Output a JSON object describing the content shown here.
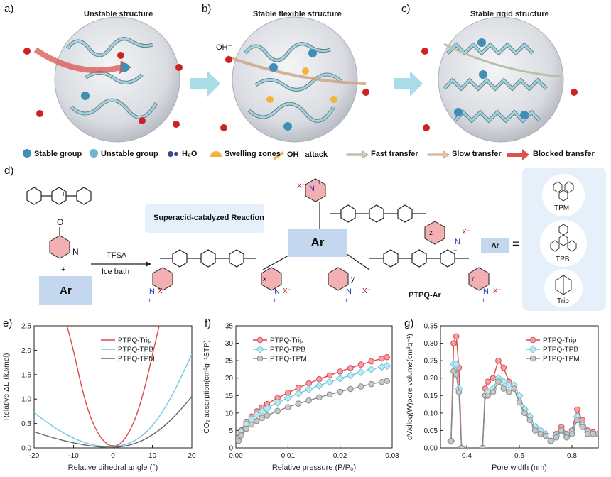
{
  "panels": {
    "a": {
      "label": "a)",
      "title": "Unstable structure"
    },
    "b": {
      "label": "b)",
      "title": "Stable flexible structure",
      "oh": "OH⁻"
    },
    "c": {
      "label": "c)",
      "title": "Stable rigid structure"
    },
    "d": {
      "label": "d)"
    },
    "e": {
      "label": "e)"
    },
    "f": {
      "label": "f)"
    },
    "g": {
      "label": "g)"
    }
  },
  "legend": {
    "stable": "Stable group",
    "unstable": "Unstable group",
    "h2o": "H₂O",
    "swelling": "Swelling zones",
    "oh_attack": "OH⁻ attack",
    "fast": "Fast transfer",
    "slow": "Slow transfer",
    "blocked": "Blocked transfer"
  },
  "scheme": {
    "reaction": "Superacid-catalyzed Reaction",
    "reagent": "TFSA",
    "condition": "Ice bath",
    "ar": "Ar",
    "ar_small": "Ar",
    "equals": "=",
    "plus1": "+",
    "plus2": "+",
    "o": "O",
    "n": "N",
    "polymer": "PTPQ-Ar",
    "sub_x": "x",
    "sub_y": "y",
    "sub_z": "z",
    "sub_n": "n",
    "options": [
      "TPM",
      "TPB",
      "Trip"
    ],
    "xminus": "X⁻",
    "nplus": "N",
    "plus": "+"
  },
  "colors": {
    "trip": "#e0474c",
    "tpb": "#6fc8dc",
    "tpm": "#555555"
  },
  "chart_data": [
    {
      "type": "line",
      "panel": "e",
      "xlabel": "Relative dihedral angle (°)",
      "ylabel": "Relative ΔE (kJ/mol)",
      "xlim": [
        -20,
        20
      ],
      "ylim": [
        0,
        2.5
      ],
      "xticks": [
        -20,
        -10,
        0,
        10,
        20
      ],
      "yticks": [
        0.0,
        0.5,
        1.0,
        1.5,
        2.0,
        2.5
      ],
      "legend": "top-center",
      "series": [
        {
          "name": "PTPQ-Trip",
          "color": "#e0474c",
          "x": [
            -12,
            -10,
            -8,
            -6,
            -4,
            -2,
            0,
            2,
            4,
            6,
            8,
            10,
            12
          ],
          "y": [
            2.6,
            2.0,
            1.25,
            0.68,
            0.32,
            0.1,
            0.02,
            0.08,
            0.3,
            0.66,
            1.2,
            1.9,
            2.6
          ]
        },
        {
          "name": "PTPQ-TPB",
          "color": "#6fc8dc",
          "x": [
            -20,
            -15,
            -10,
            -5,
            0,
            5,
            10,
            15,
            20
          ],
          "y": [
            0.72,
            0.42,
            0.19,
            0.05,
            0.01,
            0.1,
            0.42,
            1.05,
            1.92
          ]
        },
        {
          "name": "PTPQ-TPM",
          "color": "#666666",
          "x": [
            -20,
            -15,
            -10,
            -5,
            0,
            5,
            10,
            15,
            20
          ],
          "y": [
            0.33,
            0.2,
            0.1,
            0.03,
            0.0,
            0.06,
            0.25,
            0.58,
            1.05
          ]
        }
      ]
    },
    {
      "type": "line",
      "panel": "f",
      "xlabel": "Relative pressure (P/P₀)",
      "ylabel": "CO₂ adsorption(cm³g⁻¹STP)",
      "xlim": [
        0,
        0.03
      ],
      "ylim": [
        0,
        35
      ],
      "xticks": [
        0.0,
        0.01,
        0.02,
        0.03
      ],
      "yticks": [
        0,
        5,
        10,
        15,
        20,
        25,
        30,
        35
      ],
      "legend": "top-left",
      "series": [
        {
          "name": "PTPQ-Trip",
          "color": "#e0474c",
          "x": [
            0.0005,
            0.001,
            0.002,
            0.003,
            0.004,
            0.005,
            0.006,
            0.008,
            0.01,
            0.012,
            0.014,
            0.016,
            0.018,
            0.02,
            0.022,
            0.024,
            0.026,
            0.028,
            0.029
          ],
          "y": [
            3,
            5,
            7.5,
            9,
            10.5,
            11.6,
            12.6,
            14.3,
            15.8,
            17.2,
            18.5,
            19.7,
            20.8,
            21.9,
            22.9,
            23.9,
            24.8,
            25.6,
            26
          ]
        },
        {
          "name": "PTPQ-TPB",
          "color": "#6fc8dc",
          "x": [
            0.0005,
            0.001,
            0.002,
            0.003,
            0.004,
            0.005,
            0.006,
            0.008,
            0.01,
            0.012,
            0.014,
            0.016,
            0.018,
            0.02,
            0.022,
            0.024,
            0.026,
            0.028,
            0.029
          ],
          "y": [
            2.5,
            4.5,
            6.8,
            8.2,
            9.5,
            10.5,
            11.4,
            13,
            14.3,
            15.6,
            16.8,
            17.9,
            18.9,
            19.9,
            20.8,
            21.7,
            22.5,
            23.2,
            23.5
          ]
        },
        {
          "name": "PTPQ-TPM",
          "color": "#888888",
          "x": [
            0.0005,
            0.001,
            0.002,
            0.003,
            0.004,
            0.005,
            0.006,
            0.008,
            0.01,
            0.012,
            0.014,
            0.016,
            0.018,
            0.02,
            0.022,
            0.024,
            0.026,
            0.028,
            0.029
          ],
          "y": [
            2,
            3.6,
            5.5,
            6.7,
            7.7,
            8.6,
            9.3,
            10.6,
            11.7,
            12.7,
            13.6,
            14.5,
            15.3,
            16.1,
            16.9,
            17.6,
            18.3,
            18.9,
            19.2
          ]
        }
      ]
    },
    {
      "type": "line",
      "panel": "g",
      "xlabel": "Pore width (nm)",
      "ylabel": "dV/dlog(W)pore volume(cm³g⁻¹)",
      "xlim": [
        0.3,
        0.9
      ],
      "ylim": [
        0,
        0.35
      ],
      "xticks": [
        0.4,
        0.6,
        0.8
      ],
      "yticks": [
        0.0,
        0.05,
        0.1,
        0.15,
        0.2,
        0.25,
        0.3,
        0.35
      ],
      "legend": "top-right",
      "series": [
        {
          "name": "PTPQ-Trip",
          "color": "#e0474c",
          "x": [
            0.34,
            0.35,
            0.36,
            0.37,
            0.38,
            0.46,
            0.47,
            0.48,
            0.5,
            0.52,
            0.54,
            0.56,
            0.58,
            0.6,
            0.62,
            0.64,
            0.66,
            0.68,
            0.7,
            0.72,
            0.74,
            0.76,
            0.78,
            0.8,
            0.82,
            0.84,
            0.86,
            0.88,
            0.9
          ],
          "y": [
            0.02,
            0.3,
            0.32,
            0.23,
            0.0,
            0.0,
            0.17,
            0.19,
            0.2,
            0.25,
            0.23,
            0.19,
            0.18,
            0.15,
            0.11,
            0.09,
            0.06,
            0.05,
            0.04,
            0.02,
            0.04,
            0.06,
            0.04,
            0.05,
            0.11,
            0.08,
            0.05,
            0.045,
            0.04
          ]
        },
        {
          "name": "PTPQ-TPB",
          "color": "#6fc8dc",
          "x": [
            0.34,
            0.35,
            0.36,
            0.37,
            0.38,
            0.46,
            0.47,
            0.48,
            0.5,
            0.52,
            0.54,
            0.56,
            0.58,
            0.6,
            0.62,
            0.64,
            0.66,
            0.68,
            0.7,
            0.72,
            0.74,
            0.76,
            0.78,
            0.8,
            0.82,
            0.84,
            0.86,
            0.88,
            0.9
          ],
          "y": [
            0.02,
            0.24,
            0.24,
            0.17,
            0.0,
            0.0,
            0.15,
            0.16,
            0.17,
            0.2,
            0.19,
            0.18,
            0.18,
            0.15,
            0.11,
            0.09,
            0.06,
            0.05,
            0.04,
            0.02,
            0.035,
            0.05,
            0.035,
            0.045,
            0.09,
            0.065,
            0.045,
            0.04,
            0.04
          ]
        },
        {
          "name": "PTPQ-TPM",
          "color": "#888888",
          "x": [
            0.34,
            0.35,
            0.36,
            0.37,
            0.38,
            0.46,
            0.47,
            0.48,
            0.5,
            0.52,
            0.54,
            0.56,
            0.58,
            0.6,
            0.62,
            0.64,
            0.66,
            0.68,
            0.7,
            0.72,
            0.74,
            0.76,
            0.78,
            0.8,
            0.82,
            0.84,
            0.86,
            0.88,
            0.9
          ],
          "y": [
            0.02,
            0.22,
            0.21,
            0.16,
            0.0,
            0.0,
            0.15,
            0.15,
            0.16,
            0.19,
            0.17,
            0.16,
            0.17,
            0.13,
            0.1,
            0.08,
            0.05,
            0.04,
            0.035,
            0.02,
            0.03,
            0.05,
            0.03,
            0.04,
            0.08,
            0.06,
            0.04,
            0.04,
            0.04
          ]
        }
      ]
    }
  ]
}
